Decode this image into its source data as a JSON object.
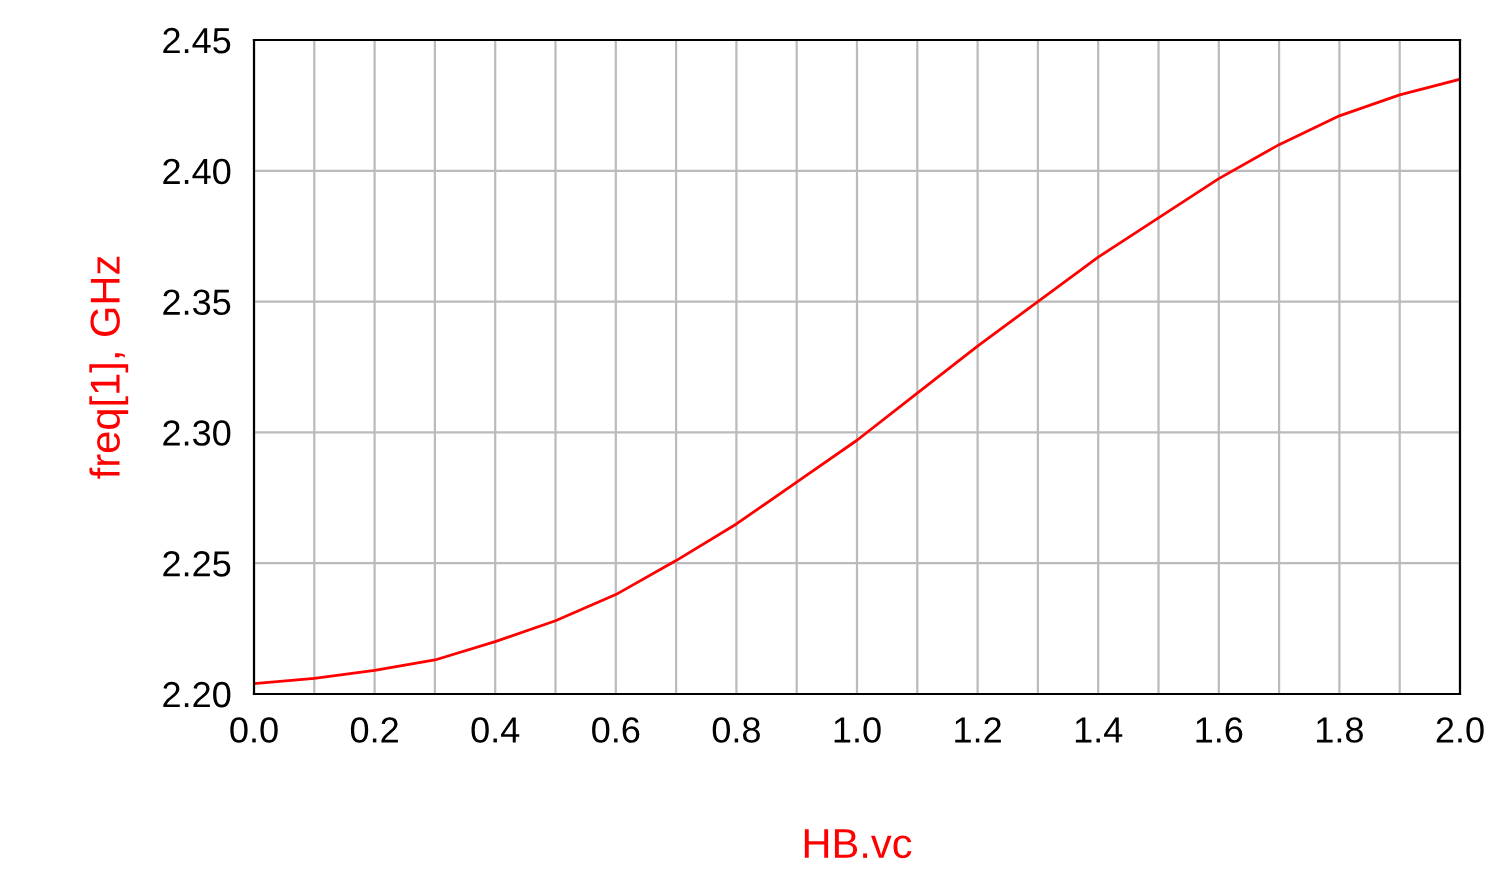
{
  "chart_data": {
    "type": "line",
    "xlabel": "HB.vc",
    "ylabel": "freq[1], GHz",
    "x": [
      0.0,
      0.1,
      0.2,
      0.3,
      0.4,
      0.5,
      0.6,
      0.7,
      0.8,
      0.9,
      1.0,
      1.1,
      1.2,
      1.3,
      1.4,
      1.5,
      1.6,
      1.7,
      1.8,
      1.9,
      2.0
    ],
    "series": [
      {
        "color": "#ff0000",
        "values": [
          2.204,
          2.206,
          2.209,
          2.213,
          2.22,
          2.228,
          2.238,
          2.251,
          2.265,
          2.281,
          2.297,
          2.315,
          2.333,
          2.35,
          2.367,
          2.382,
          2.397,
          2.41,
          2.421,
          2.429,
          2.435
        ]
      }
    ],
    "xlim": [
      0.0,
      2.0
    ],
    "xticks": [
      {
        "value": 0.0,
        "label": "0.0"
      },
      {
        "value": 0.1,
        "label": null
      },
      {
        "value": 0.2,
        "label": "0.2"
      },
      {
        "value": 0.3,
        "label": null
      },
      {
        "value": 0.4,
        "label": "0.4"
      },
      {
        "value": 0.5,
        "label": null
      },
      {
        "value": 0.6,
        "label": "0.6"
      },
      {
        "value": 0.7,
        "label": null
      },
      {
        "value": 0.8,
        "label": "0.8"
      },
      {
        "value": 0.9,
        "label": null
      },
      {
        "value": 1.0,
        "label": "1.0"
      },
      {
        "value": 1.1,
        "label": null
      },
      {
        "value": 1.2,
        "label": "1.2"
      },
      {
        "value": 1.3,
        "label": null
      },
      {
        "value": 1.4,
        "label": "1.4"
      },
      {
        "value": 1.5,
        "label": null
      },
      {
        "value": 1.6,
        "label": "1.6"
      },
      {
        "value": 1.7,
        "label": null
      },
      {
        "value": 1.8,
        "label": "1.8"
      },
      {
        "value": 1.9,
        "label": null
      },
      {
        "value": 2.0,
        "label": "2.0"
      }
    ],
    "ylim": [
      2.2,
      2.45
    ],
    "yticks": [
      {
        "value": 2.2,
        "label": "2.20"
      },
      {
        "value": 2.25,
        "label": "2.25"
      },
      {
        "value": 2.3,
        "label": "2.30"
      },
      {
        "value": 2.35,
        "label": "2.35"
      },
      {
        "value": 2.4,
        "label": "2.40"
      },
      {
        "value": 2.45,
        "label": "2.45"
      }
    ],
    "grid": true,
    "line_style": "solid",
    "marker": "none"
  }
}
